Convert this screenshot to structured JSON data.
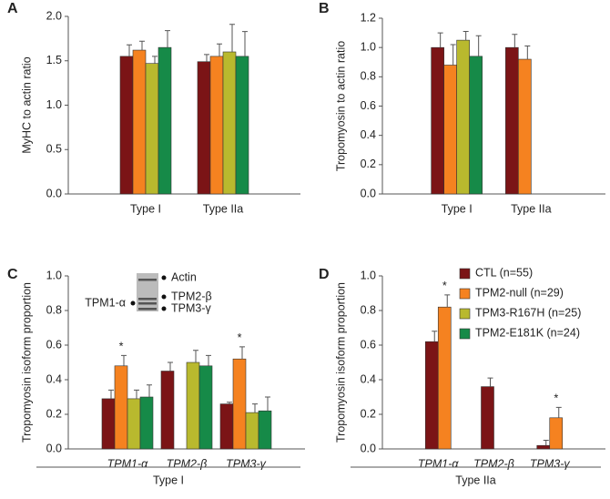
{
  "chart_data": [
    {
      "type": "bar",
      "panel_label": "A",
      "y_label": "MyHC to actin ratio",
      "categories": [
        "Type I",
        "Type IIa"
      ],
      "ylim": [
        0,
        2
      ],
      "yticks": [
        {
          "value": 0,
          "label": "0.0"
        },
        {
          "value": 0.5,
          "label": "0.5"
        },
        {
          "value": 1,
          "label": "1.0"
        },
        {
          "value": 1.5,
          "label": "1.5"
        },
        {
          "value": 2,
          "label": "2.0"
        }
      ],
      "series": [
        {
          "color": "#7b1416",
          "values": [
            1.55,
            1.49
          ],
          "errors": [
            0.13,
            0.08
          ]
        },
        {
          "color": "#f58220",
          "values": [
            1.62,
            1.55
          ],
          "errors": [
            0.1,
            0.14
          ]
        },
        {
          "color": "#b9b92e",
          "values": [
            1.47,
            1.6
          ],
          "errors": [
            0.08,
            0.31
          ]
        },
        {
          "color": "#168a48",
          "values": [
            1.65,
            1.55
          ],
          "errors": [
            0.19,
            0.28
          ]
        }
      ]
    },
    {
      "type": "bar",
      "panel_label": "B",
      "y_label": "Tropomyosin to actin ratio",
      "categories": [
        "Type I",
        "Type IIa"
      ],
      "ylim": [
        0,
        1.2
      ],
      "yticks": [
        {
          "value": 0,
          "label": "0.0"
        },
        {
          "value": 0.2,
          "label": "0.2"
        },
        {
          "value": 0.4,
          "label": "0.4"
        },
        {
          "value": 0.6,
          "label": "0.6"
        },
        {
          "value": 0.8,
          "label": "0.8"
        },
        {
          "value": 1,
          "label": "1.0"
        },
        {
          "value": 1.2,
          "label": "1.2"
        }
      ],
      "series": [
        {
          "color": "#7b1416",
          "values": [
            1.0,
            1.0
          ],
          "errors": [
            0.1,
            0.09
          ]
        },
        {
          "color": "#f58220",
          "values": [
            0.88,
            0.92
          ],
          "errors": [
            0.14,
            0.09
          ]
        },
        {
          "color": "#b9b92e",
          "values": [
            1.05,
            null
          ],
          "errors": [
            0.06,
            null
          ]
        },
        {
          "color": "#168a48",
          "values": [
            0.94,
            null
          ],
          "errors": [
            0.14,
            null
          ]
        }
      ]
    },
    {
      "type": "bar",
      "panel_label": "C",
      "y_label": "Tropomyosin isoform proportion",
      "group_label": "Type I",
      "categories": [
        "TPM1-α",
        "TPM2-β",
        "TPM3-γ"
      ],
      "inset_labels": [
        "Actin",
        "TPM1-α",
        "TPM2-β",
        "TPM3-γ"
      ],
      "ylim": [
        0,
        1
      ],
      "yticks": [
        {
          "value": 0,
          "label": "0.0"
        },
        {
          "value": 0.2,
          "label": "0.2"
        },
        {
          "value": 0.4,
          "label": "0.4"
        },
        {
          "value": 0.6,
          "label": "0.6"
        },
        {
          "value": 0.8,
          "label": "0.8"
        },
        {
          "value": 1,
          "label": "1.0"
        }
      ],
      "series": [
        {
          "color": "#7b1416",
          "values": [
            0.29,
            0.45,
            0.26
          ],
          "errors": [
            0.05,
            0.05,
            0.01
          ]
        },
        {
          "color": "#f58220",
          "values": [
            0.48,
            null,
            0.52
          ],
          "errors": [
            0.06,
            null,
            0.07
          ],
          "significance": [
            "*",
            null,
            "*"
          ]
        },
        {
          "color": "#b9b92e",
          "values": [
            0.29,
            0.5,
            0.21
          ],
          "errors": [
            0.05,
            0.07,
            0.05
          ]
        },
        {
          "color": "#168a48",
          "values": [
            0.3,
            0.48,
            0.22
          ],
          "errors": [
            0.07,
            0.06,
            0.08
          ]
        }
      ]
    },
    {
      "type": "bar",
      "panel_label": "D",
      "y_label": "Tropomyosin isoform proportion",
      "group_label": "Type IIa",
      "categories": [
        "TPM1-α",
        "TPM2-β",
        "TPM3-γ"
      ],
      "legend": true,
      "legend_entries": [
        {
          "name": "CTL (n=55)",
          "color": "#7b1416"
        },
        {
          "name": "TPM2-null (n=29)",
          "color": "#f58220"
        },
        {
          "name": "TPM3-R167H (n=25)",
          "color": "#b9b92e"
        },
        {
          "name": "TPM2-E181K (n=24)",
          "color": "#168a48"
        }
      ],
      "ylim": [
        0,
        1
      ],
      "yticks": [
        {
          "value": 0,
          "label": "0.0"
        },
        {
          "value": 0.2,
          "label": "0.2"
        },
        {
          "value": 0.4,
          "label": "0.4"
        },
        {
          "value": 0.6,
          "label": "0.6"
        },
        {
          "value": 0.8,
          "label": "0.8"
        },
        {
          "value": 1,
          "label": "1.0"
        }
      ],
      "series": [
        {
          "name": "CTL (n=55)",
          "color": "#7b1416",
          "values": [
            0.62,
            0.36,
            0.02
          ],
          "errors": [
            0.06,
            0.05,
            0.03
          ]
        },
        {
          "name": "TPM2-null (n=29)",
          "color": "#f58220",
          "values": [
            0.82,
            null,
            0.18
          ],
          "errors": [
            0.07,
            null,
            0.06
          ],
          "significance": [
            "*",
            null,
            "*"
          ]
        }
      ]
    }
  ]
}
